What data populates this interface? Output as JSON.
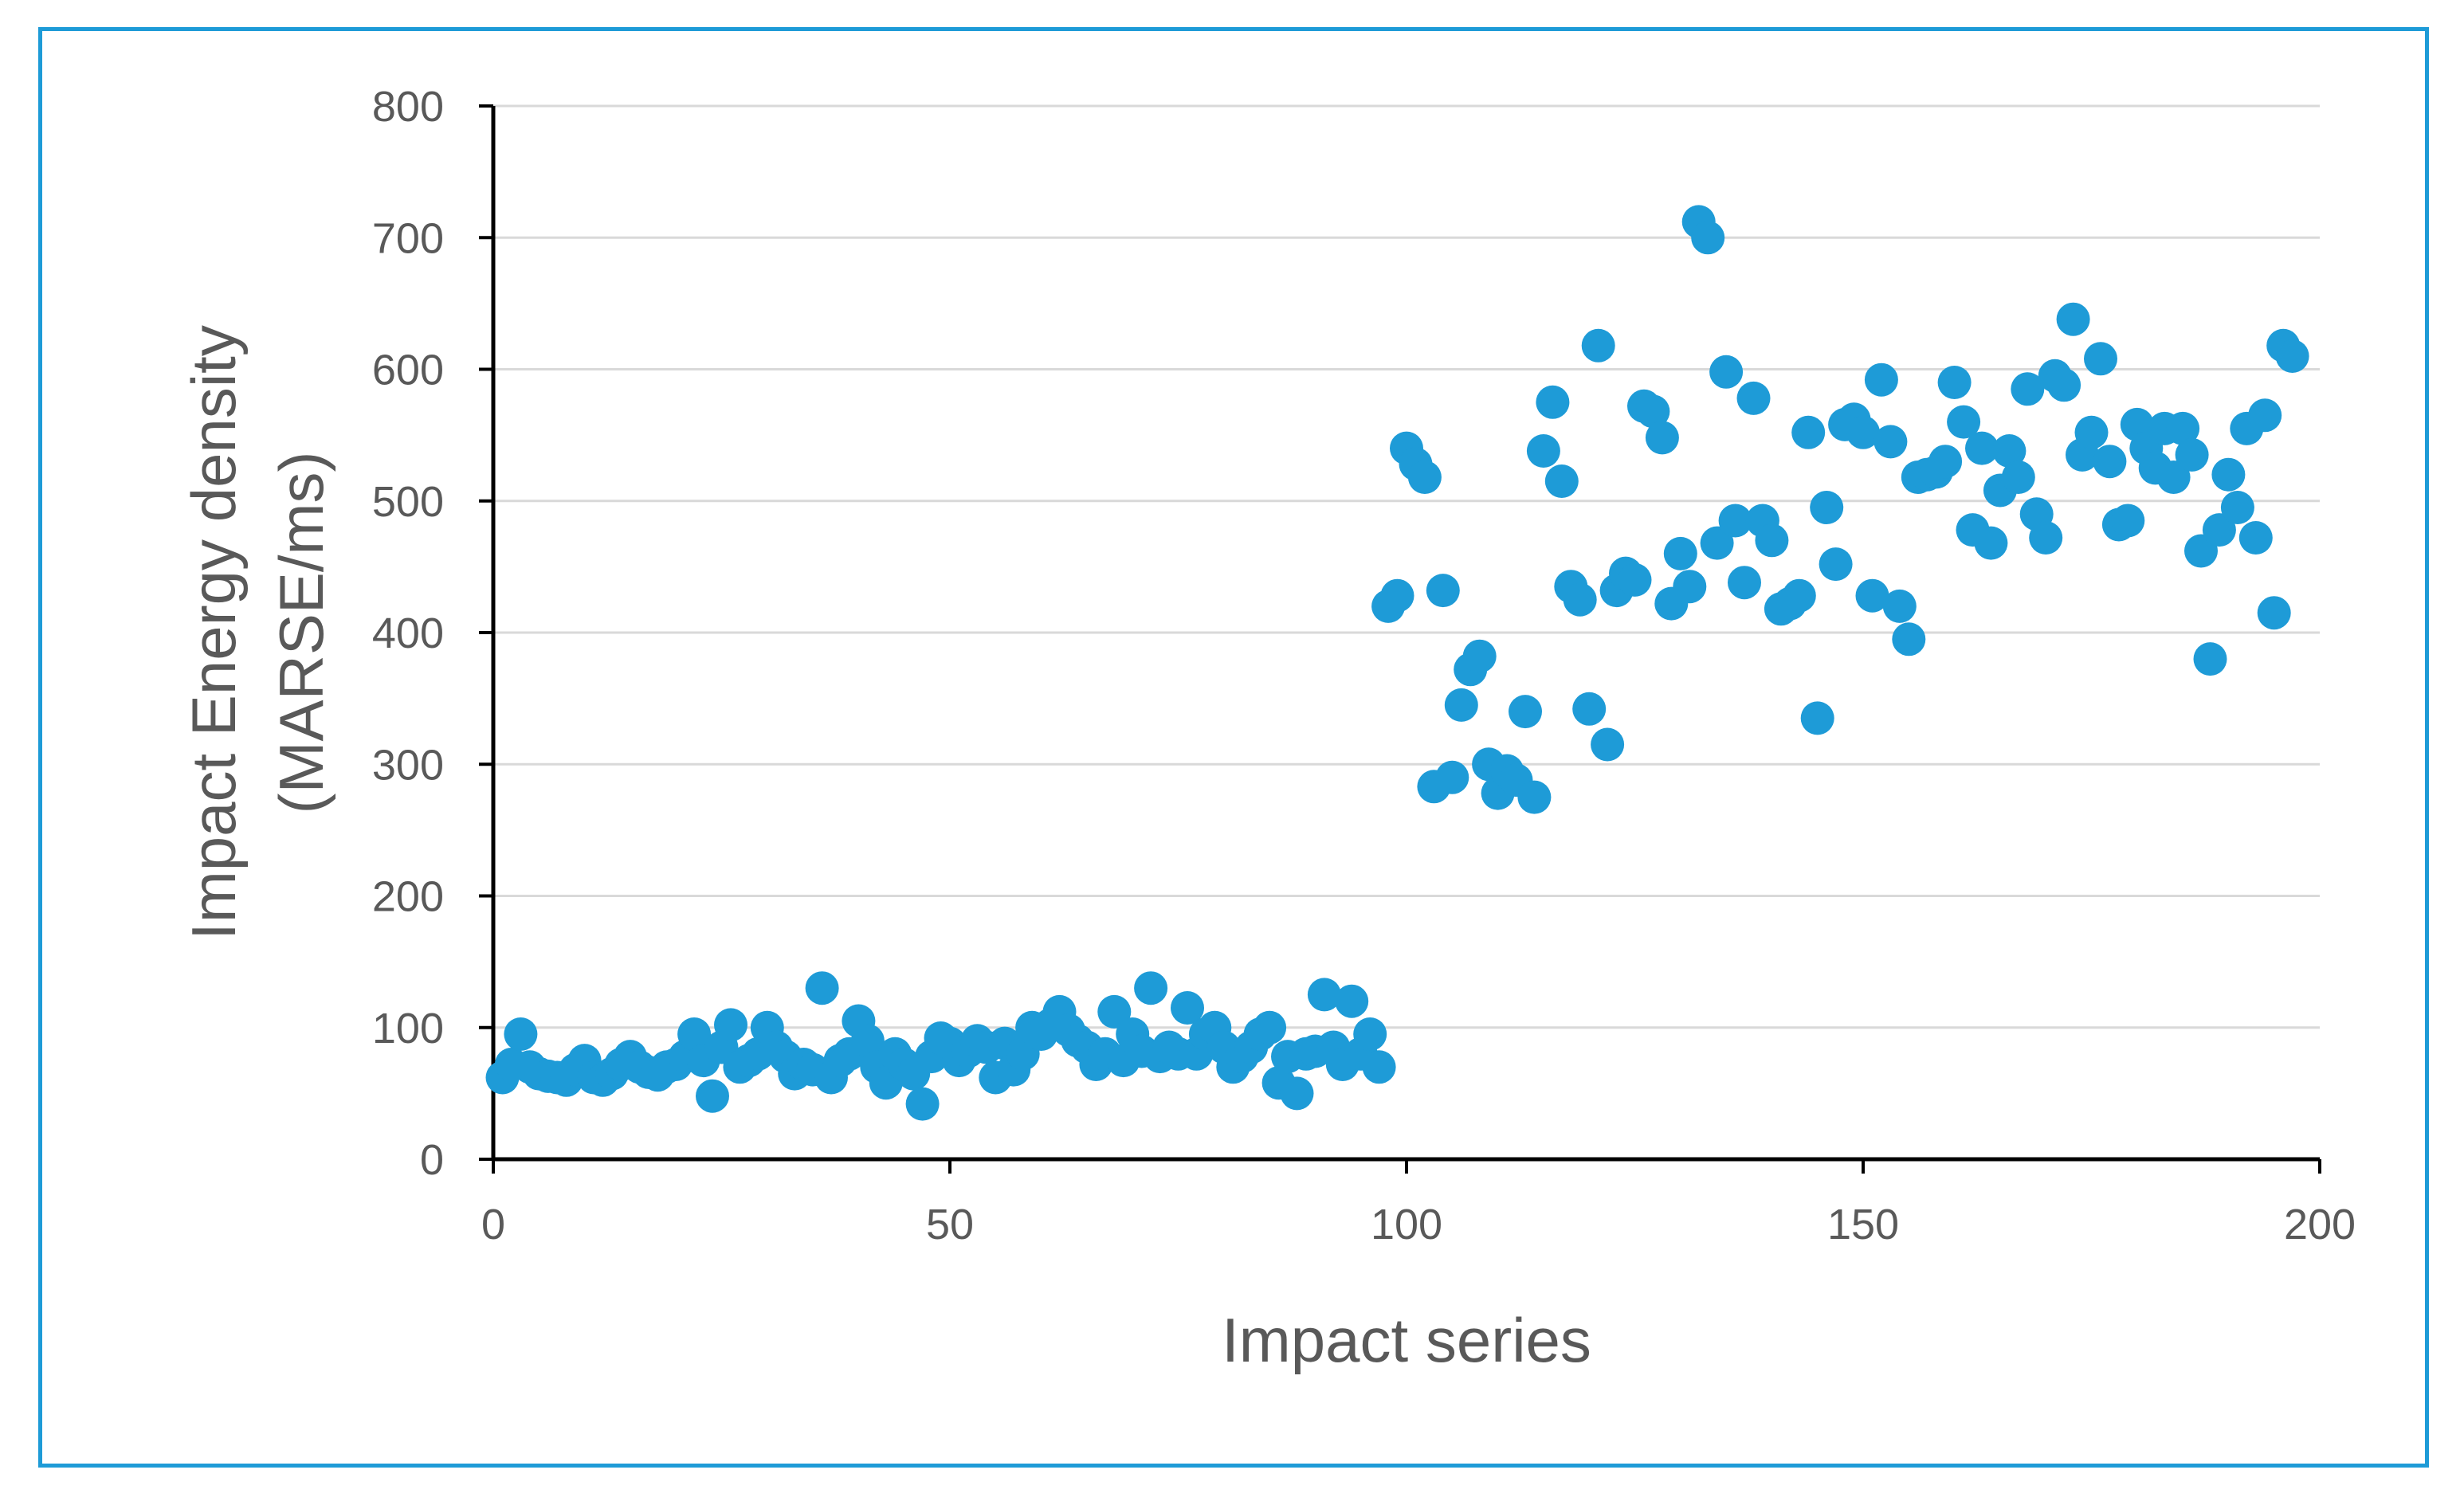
{
  "chart_data": {
    "type": "scatter",
    "title": "",
    "xlabel": "Impact series",
    "ylabel_lines": [
      "Impact Energy density",
      "(MARSE/ms)"
    ],
    "xlim": [
      0,
      200
    ],
    "ylim": [
      0,
      800
    ],
    "x_ticks": [
      0,
      50,
      100,
      150,
      200
    ],
    "y_ticks": [
      0,
      100,
      200,
      300,
      400,
      500,
      600,
      700,
      800
    ],
    "grid": "horizontal",
    "legend": "none",
    "marker_color": "#1e9bd7",
    "series": [
      {
        "points": [
          [
            1,
            62
          ],
          [
            2,
            72
          ],
          [
            3,
            95
          ],
          [
            4,
            70
          ],
          [
            5,
            65
          ],
          [
            6,
            63
          ],
          [
            7,
            62
          ],
          [
            8,
            60
          ],
          [
            9,
            68
          ],
          [
            10,
            75
          ],
          [
            11,
            62
          ],
          [
            12,
            60
          ],
          [
            13,
            65
          ],
          [
            14,
            72
          ],
          [
            15,
            78
          ],
          [
            16,
            70
          ],
          [
            17,
            66
          ],
          [
            18,
            64
          ],
          [
            19,
            70
          ],
          [
            20,
            72
          ],
          [
            21,
            78
          ],
          [
            22,
            95
          ],
          [
            23,
            75
          ],
          [
            24,
            48
          ],
          [
            25,
            85
          ],
          [
            26,
            102
          ],
          [
            27,
            70
          ],
          [
            28,
            75
          ],
          [
            29,
            80
          ],
          [
            30,
            100
          ],
          [
            31,
            85
          ],
          [
            32,
            78
          ],
          [
            33,
            65
          ],
          [
            34,
            72
          ],
          [
            35,
            68
          ],
          [
            36,
            130
          ],
          [
            37,
            62
          ],
          [
            38,
            75
          ],
          [
            39,
            80
          ],
          [
            40,
            105
          ],
          [
            41,
            90
          ],
          [
            42,
            70
          ],
          [
            43,
            58
          ],
          [
            44,
            80
          ],
          [
            45,
            72
          ],
          [
            46,
            65
          ],
          [
            47,
            42
          ],
          [
            48,
            78
          ],
          [
            49,
            92
          ],
          [
            50,
            88
          ],
          [
            51,
            75
          ],
          [
            52,
            82
          ],
          [
            53,
            90
          ],
          [
            54,
            85
          ],
          [
            55,
            62
          ],
          [
            56,
            88
          ],
          [
            57,
            68
          ],
          [
            58,
            80
          ],
          [
            59,
            100
          ],
          [
            60,
            95
          ],
          [
            61,
            102
          ],
          [
            62,
            112
          ],
          [
            63,
            98
          ],
          [
            64,
            90
          ],
          [
            65,
            85
          ],
          [
            66,
            72
          ],
          [
            67,
            80
          ],
          [
            68,
            112
          ],
          [
            69,
            75
          ],
          [
            70,
            95
          ],
          [
            71,
            82
          ],
          [
            72,
            130
          ],
          [
            73,
            78
          ],
          [
            74,
            85
          ],
          [
            75,
            80
          ],
          [
            76,
            115
          ],
          [
            77,
            80
          ],
          [
            78,
            95
          ],
          [
            79,
            100
          ],
          [
            80,
            85
          ],
          [
            81,
            70
          ],
          [
            82,
            78
          ],
          [
            83,
            85
          ],
          [
            84,
            95
          ],
          [
            85,
            100
          ],
          [
            86,
            58
          ],
          [
            87,
            78
          ],
          [
            88,
            50
          ],
          [
            89,
            80
          ],
          [
            90,
            82
          ],
          [
            91,
            125
          ],
          [
            92,
            85
          ],
          [
            93,
            72
          ],
          [
            94,
            120
          ],
          [
            95,
            80
          ],
          [
            96,
            95
          ],
          [
            97,
            70
          ],
          [
            98,
            420
          ],
          [
            99,
            428
          ],
          [
            100,
            540
          ],
          [
            101,
            528
          ],
          [
            102,
            518
          ],
          [
            103,
            283
          ],
          [
            104,
            432
          ],
          [
            105,
            290
          ],
          [
            106,
            345
          ],
          [
            107,
            372
          ],
          [
            108,
            382
          ],
          [
            109,
            300
          ],
          [
            110,
            278
          ],
          [
            111,
            295
          ],
          [
            112,
            288
          ],
          [
            113,
            340
          ],
          [
            114,
            275
          ],
          [
            115,
            538
          ],
          [
            116,
            575
          ],
          [
            117,
            515
          ],
          [
            118,
            435
          ],
          [
            119,
            425
          ],
          [
            120,
            342
          ],
          [
            121,
            618
          ],
          [
            122,
            315
          ],
          [
            123,
            432
          ],
          [
            124,
            445
          ],
          [
            125,
            440
          ],
          [
            126,
            572
          ],
          [
            127,
            568
          ],
          [
            128,
            548
          ],
          [
            129,
            422
          ],
          [
            130,
            460
          ],
          [
            131,
            435
          ],
          [
            132,
            712
          ],
          [
            133,
            700
          ],
          [
            134,
            468
          ],
          [
            135,
            598
          ],
          [
            136,
            485
          ],
          [
            137,
            438
          ],
          [
            138,
            578
          ],
          [
            139,
            485
          ],
          [
            140,
            470
          ],
          [
            141,
            418
          ],
          [
            142,
            422
          ],
          [
            143,
            428
          ],
          [
            144,
            552
          ],
          [
            145,
            335
          ],
          [
            146,
            495
          ],
          [
            147,
            452
          ],
          [
            148,
            558
          ],
          [
            149,
            562
          ],
          [
            150,
            552
          ],
          [
            151,
            428
          ],
          [
            152,
            592
          ],
          [
            153,
            545
          ],
          [
            154,
            420
          ],
          [
            155,
            395
          ],
          [
            156,
            518
          ],
          [
            157,
            520
          ],
          [
            158,
            522
          ],
          [
            159,
            530
          ],
          [
            160,
            590
          ],
          [
            161,
            560
          ],
          [
            162,
            478
          ],
          [
            163,
            540
          ],
          [
            164,
            468
          ],
          [
            165,
            508
          ],
          [
            166,
            538
          ],
          [
            167,
            518
          ],
          [
            168,
            585
          ],
          [
            169,
            490
          ],
          [
            170,
            472
          ],
          [
            171,
            595
          ],
          [
            172,
            588
          ],
          [
            173,
            638
          ],
          [
            174,
            535
          ],
          [
            175,
            552
          ],
          [
            176,
            608
          ],
          [
            177,
            530
          ],
          [
            178,
            482
          ],
          [
            179,
            485
          ],
          [
            180,
            558
          ],
          [
            181,
            540
          ],
          [
            182,
            525
          ],
          [
            183,
            555
          ],
          [
            184,
            518
          ],
          [
            185,
            555
          ],
          [
            186,
            535
          ],
          [
            187,
            462
          ],
          [
            188,
            380
          ],
          [
            189,
            478
          ],
          [
            190,
            520
          ],
          [
            191,
            495
          ],
          [
            192,
            555
          ],
          [
            193,
            472
          ],
          [
            194,
            565
          ],
          [
            195,
            415
          ],
          [
            196,
            618
          ],
          [
            197,
            610
          ]
        ]
      }
    ]
  }
}
